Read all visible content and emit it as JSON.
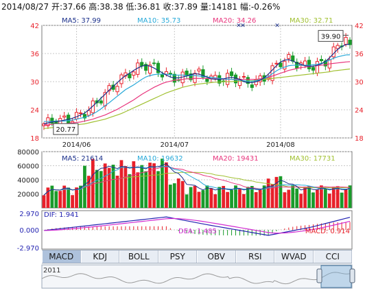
{
  "header": {
    "text": "2014/08/27 开:37.66 高:38.38 低:36.81 收:37.89 量:14181 幅:-0.26%"
  },
  "colors": {
    "up": "#e8202a",
    "down": "#1a9b2a",
    "ma5": "#1a2f8a",
    "ma10": "#25a8d8",
    "ma20": "#e8347c",
    "ma30": "#a0c030",
    "dif": "#1f1fb0",
    "dea": "#d12ad1",
    "grid": "#c8c8c8",
    "frame": "#7a7a7a"
  },
  "tabs": [
    {
      "label": "MACD",
      "active": true
    },
    {
      "label": "KDJ",
      "active": false
    },
    {
      "label": "BOLL",
      "active": false
    },
    {
      "label": "PSY",
      "active": false
    },
    {
      "label": "OBV",
      "active": false
    },
    {
      "label": "RSI",
      "active": false
    },
    {
      "label": "WVAD",
      "active": false
    },
    {
      "label": "CCI",
      "active": false
    }
  ],
  "navigator": {
    "year_label": "2011"
  },
  "chart_data": [
    {
      "type": "candlestick",
      "ylim": [
        18,
        42
      ],
      "yticks": [
        "42",
        "36",
        "30",
        "24",
        "18"
      ],
      "xticks": [
        "2014/06",
        "2014/07",
        "2014/08"
      ],
      "xtick_index": [
        8,
        32,
        58
      ],
      "legend": [
        {
          "label": "MA5: 37.99",
          "color": "#1a2f8a"
        },
        {
          "label": "MA10: 35.73",
          "color": "#25a8d8"
        },
        {
          "label": "MA20: 34.26",
          "color": "#e8347c"
        },
        {
          "label": "MA30: 32.71",
          "color": "#a0c030"
        }
      ],
      "annotations": {
        "high": "39.90",
        "low": "20.77",
        "high_index": 75,
        "low_index": 2
      },
      "ma": {
        "ma5": [
          21.0,
          21.2,
          21.4,
          21.5,
          21.6,
          21.8,
          22.0,
          22.2,
          22.5,
          22.9,
          23.3,
          24.0,
          24.8,
          25.6,
          26.5,
          27.3,
          28.2,
          29.0,
          29.8,
          30.6,
          31.3,
          31.8,
          32.4,
          32.9,
          33.3,
          33.5,
          33.3,
          32.9,
          32.4,
          31.9,
          31.4,
          31.0,
          30.8,
          30.8,
          31.0,
          31.2,
          31.5,
          31.7,
          31.6,
          31.3,
          31.0,
          30.6,
          30.5,
          30.5,
          30.6,
          30.8,
          30.9,
          30.8,
          30.5,
          30.0,
          29.8,
          29.8,
          30.0,
          30.3,
          30.8,
          31.6,
          32.5,
          33.4,
          34.2,
          34.6,
          34.7,
          34.4,
          34.0,
          33.7,
          33.4,
          33.3,
          33.3,
          33.5,
          33.8,
          34.3,
          35.1,
          36.0,
          36.9,
          37.5,
          37.9,
          38.0
        ],
        "ma10": [
          21.5,
          21.5,
          21.5,
          21.6,
          21.6,
          21.6,
          21.7,
          21.8,
          22.0,
          22.2,
          22.4,
          22.7,
          23.1,
          23.6,
          24.2,
          24.9,
          25.5,
          26.2,
          26.9,
          27.6,
          28.3,
          28.8,
          29.3,
          29.9,
          30.5,
          31.0,
          31.3,
          31.5,
          31.6,
          31.6,
          31.6,
          31.5,
          31.4,
          31.4,
          31.4,
          31.3,
          31.3,
          31.3,
          31.2,
          31.1,
          31.0,
          30.9,
          30.8,
          30.7,
          30.6,
          30.5,
          30.5,
          30.4,
          30.3,
          30.2,
          30.1,
          30.1,
          30.2,
          30.4,
          30.7,
          31.1,
          31.7,
          32.3,
          32.8,
          33.1,
          33.4,
          33.5,
          33.5,
          33.5,
          33.5,
          33.5,
          33.6,
          33.7,
          33.9,
          34.2,
          34.6,
          35.0,
          35.3,
          35.5,
          35.7,
          35.73
        ],
        "ma20": [
          20.8,
          20.8,
          20.9,
          20.9,
          21.0,
          21.0,
          21.1,
          21.2,
          21.3,
          21.4,
          21.6,
          21.8,
          22.0,
          22.3,
          22.6,
          22.9,
          23.3,
          23.7,
          24.1,
          24.6,
          25.1,
          25.6,
          26.1,
          26.7,
          27.3,
          27.8,
          28.3,
          28.8,
          29.2,
          29.6,
          29.9,
          30.1,
          30.3,
          30.4,
          30.5,
          30.6,
          30.6,
          30.7,
          30.7,
          30.7,
          30.7,
          30.6,
          30.6,
          30.6,
          30.5,
          30.5,
          30.5,
          30.5,
          30.5,
          30.5,
          30.5,
          30.5,
          30.5,
          30.6,
          30.8,
          31.0,
          31.2,
          31.5,
          31.8,
          32.1,
          32.4,
          32.6,
          32.8,
          33.0,
          33.1,
          33.2,
          33.3,
          33.4,
          33.5,
          33.6,
          33.8,
          33.9,
          34.0,
          34.1,
          34.2,
          34.26
        ],
        "ma30": [
          20.0,
          20.1,
          20.2,
          20.3,
          20.4,
          20.5,
          20.6,
          20.7,
          20.8,
          20.9,
          21.0,
          21.2,
          21.4,
          21.6,
          21.8,
          22.0,
          22.3,
          22.6,
          22.9,
          23.2,
          23.6,
          24.0,
          24.4,
          24.8,
          25.2,
          25.6,
          26.0,
          26.4,
          26.8,
          27.2,
          27.6,
          27.9,
          28.2,
          28.5,
          28.8,
          29.0,
          29.2,
          29.4,
          29.5,
          29.6,
          29.7,
          29.8,
          29.9,
          29.9,
          30.0,
          30.0,
          30.0,
          30.1,
          30.1,
          30.1,
          30.2,
          30.2,
          30.3,
          30.4,
          30.5,
          30.6,
          30.7,
          30.8,
          30.9,
          31.0,
          31.1,
          31.2,
          31.3,
          31.4,
          31.5,
          31.6,
          31.7,
          31.8,
          31.9,
          32.0,
          32.1,
          32.3,
          32.4,
          32.5,
          32.6,
          32.71
        ]
      }
    },
    {
      "type": "bar",
      "title": "volume",
      "ylim": [
        0,
        80000
      ],
      "yticks": [
        "80000",
        "60000",
        "40000",
        "20000"
      ],
      "legend": [
        {
          "label": "MA5: 21614",
          "color": "#1a2f8a"
        },
        {
          "label": "MA10: 19632",
          "color": "#25a8d8"
        },
        {
          "label": "MA20: 19431",
          "color": "#e8347c"
        },
        {
          "label": "MA30: 17731",
          "color": "#a0c030"
        }
      ]
    },
    {
      "type": "line",
      "title": "MACD",
      "ylim": [
        -2.97,
        2.97
      ],
      "yticks": [
        "2.970",
        "0.000",
        "-2.970"
      ],
      "legend": [
        {
          "label": "DIF: 1.941",
          "color": "#1f1fb0"
        },
        {
          "label": "DEA: 1.485",
          "color": "#d12ad1"
        },
        {
          "label": "MACD: 0.914",
          "color": "#e8202a"
        }
      ]
    }
  ]
}
